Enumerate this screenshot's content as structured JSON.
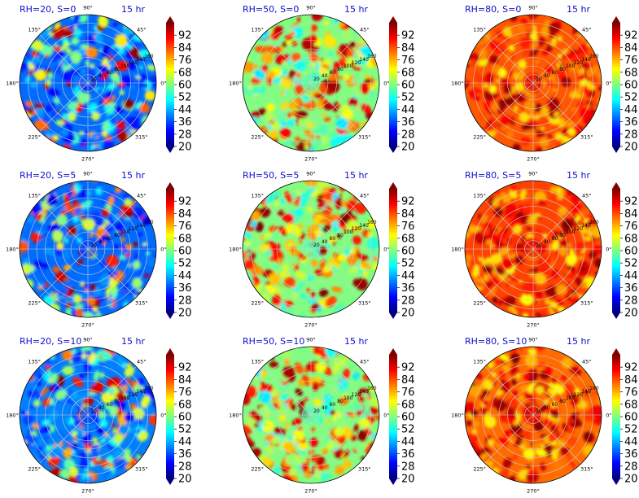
{
  "colors": {
    "title": "#1010c8",
    "colormap": [
      "#00007f",
      "#0000ff",
      "#007fff",
      "#00ffff",
      "#7fff7f",
      "#ffff00",
      "#ff7f00",
      "#ff0000",
      "#7f0000"
    ],
    "grid": "#cfcfcf"
  },
  "chart_data": [
    {
      "type": "heatmap",
      "projection": "polar",
      "title": "RH=20, S=0",
      "time_label": "15 hr",
      "value_range": [
        20,
        100
      ],
      "seed": 11,
      "mean_level": 0.28,
      "angle_ticks": [
        "90°",
        "45°",
        "0°",
        "315°",
        "270°",
        "225°",
        "180°",
        "135°"
      ],
      "radial_ticks": [
        "20",
        "40",
        "60",
        "80",
        "100",
        "120",
        "140",
        "160"
      ],
      "colorbar": {
        "ticks": [
          20,
          28,
          36,
          44,
          52,
          60,
          68,
          76,
          84,
          92
        ],
        "extend": "both"
      }
    },
    {
      "type": "heatmap",
      "projection": "polar",
      "title": "RH=50, S=0",
      "time_label": "15 hr",
      "value_range": [
        20,
        100
      ],
      "seed": 23,
      "mean_level": 0.55,
      "angle_ticks": [
        "90°",
        "45°",
        "0°",
        "315°",
        "270°",
        "225°",
        "180°",
        "135°"
      ],
      "radial_ticks": [
        "20",
        "40",
        "60",
        "80",
        "100",
        "120",
        "140",
        "160"
      ],
      "colorbar": {
        "ticks": [
          20,
          28,
          36,
          44,
          52,
          60,
          68,
          76,
          84,
          92
        ],
        "extend": "both"
      }
    },
    {
      "type": "heatmap",
      "projection": "polar",
      "title": "RH=80, S=0",
      "time_label": "15 hr",
      "value_range": [
        20,
        100
      ],
      "seed": 37,
      "mean_level": 0.84,
      "angle_ticks": [
        "90°",
        "45°",
        "0°",
        "315°",
        "270°",
        "225°",
        "180°",
        "135°"
      ],
      "radial_ticks": [
        "20",
        "40",
        "60",
        "80",
        "100",
        "120",
        "140",
        "160"
      ],
      "colorbar": {
        "ticks": [
          20,
          28,
          36,
          44,
          52,
          60,
          68,
          76,
          84,
          92
        ],
        "extend": "both"
      }
    },
    {
      "type": "heatmap",
      "projection": "polar",
      "title": "RH=20, S=5",
      "time_label": "15 hr",
      "value_range": [
        20,
        100
      ],
      "seed": 41,
      "mean_level": 0.28,
      "angle_ticks": [
        "90°",
        "45°",
        "0°",
        "315°",
        "270°",
        "225°",
        "180°",
        "135°"
      ],
      "radial_ticks": [
        "20",
        "40",
        "60",
        "80",
        "100",
        "120",
        "140",
        "160"
      ],
      "colorbar": {
        "ticks": [
          20,
          28,
          36,
          44,
          52,
          60,
          68,
          76,
          84,
          92
        ],
        "extend": "both"
      }
    },
    {
      "type": "heatmap",
      "projection": "polar",
      "title": "RH=50, S=5",
      "time_label": "15 hr",
      "value_range": [
        20,
        100
      ],
      "seed": 53,
      "mean_level": 0.55,
      "angle_ticks": [
        "90°",
        "45°",
        "0°",
        "315°",
        "270°",
        "225°",
        "180°",
        "135°"
      ],
      "radial_ticks": [
        "20",
        "40",
        "60",
        "80",
        "100",
        "120",
        "140",
        "160"
      ],
      "colorbar": {
        "ticks": [
          20,
          28,
          36,
          44,
          52,
          60,
          68,
          76,
          84,
          92
        ],
        "extend": "both"
      }
    },
    {
      "type": "heatmap",
      "projection": "polar",
      "title": "RH=80, S=5",
      "time_label": "15 hr",
      "value_range": [
        20,
        100
      ],
      "seed": 67,
      "mean_level": 0.86,
      "angle_ticks": [
        "90°",
        "45°",
        "0°",
        "315°",
        "270°",
        "225°",
        "180°",
        "135°"
      ],
      "radial_ticks": [
        "20",
        "40",
        "60",
        "80",
        "100",
        "120",
        "140",
        "160"
      ],
      "colorbar": {
        "ticks": [
          20,
          28,
          36,
          44,
          52,
          60,
          68,
          76,
          84,
          92
        ],
        "extend": "both"
      }
    },
    {
      "type": "heatmap",
      "projection": "polar",
      "title": "RH=20, S=10",
      "time_label": "15 hr",
      "value_range": [
        20,
        100
      ],
      "seed": 79,
      "mean_level": 0.3,
      "angle_ticks": [
        "90°",
        "45°",
        "0°",
        "315°",
        "270°",
        "225°",
        "180°",
        "135°"
      ],
      "radial_ticks": [
        "20",
        "40",
        "60",
        "80",
        "100",
        "120",
        "140",
        "160"
      ],
      "colorbar": {
        "ticks": [
          20,
          28,
          36,
          44,
          52,
          60,
          68,
          76,
          84,
          92
        ],
        "extend": "both"
      }
    },
    {
      "type": "heatmap",
      "projection": "polar",
      "title": "RH=50, S=10",
      "time_label": "15 hr",
      "value_range": [
        20,
        100
      ],
      "seed": 83,
      "mean_level": 0.55,
      "angle_ticks": [
        "90°",
        "45°",
        "0°",
        "315°",
        "270°",
        "225°",
        "180°",
        "135°"
      ],
      "radial_ticks": [
        "20",
        "40",
        "60",
        "80",
        "100",
        "120",
        "140",
        "160"
      ],
      "colorbar": {
        "ticks": [
          20,
          28,
          36,
          44,
          52,
          60,
          68,
          76,
          84,
          92
        ],
        "extend": "both"
      }
    },
    {
      "type": "heatmap",
      "projection": "polar",
      "title": "RH=80, S=10",
      "time_label": "15 hr",
      "value_range": [
        20,
        100
      ],
      "seed": 97,
      "mean_level": 0.82,
      "angle_ticks": [
        "90°",
        "45°",
        "0°",
        "315°",
        "270°",
        "225°",
        "180°",
        "135°"
      ],
      "radial_ticks": [
        "20",
        "40",
        "60",
        "80",
        "100",
        "120",
        "140",
        "160"
      ],
      "colorbar": {
        "ticks": [
          20,
          28,
          36,
          44,
          52,
          60,
          68,
          76,
          84,
          92
        ],
        "extend": "both"
      }
    }
  ]
}
